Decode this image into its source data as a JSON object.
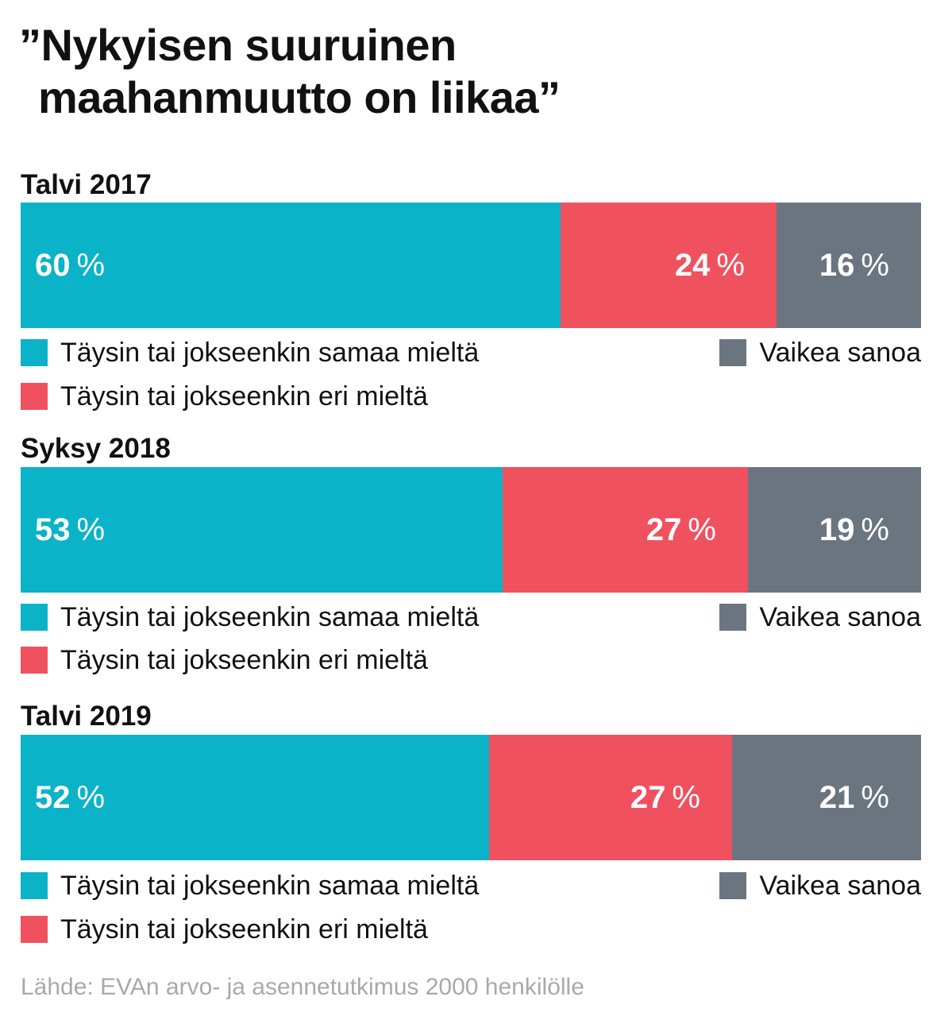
{
  "title_line1": "”Nykyisen suuruinen",
  "title_line2": "maahanmuutto on liikaa”",
  "source": "Lähde: EVAn arvo- ja asennetutkimus 2000 henkilölle",
  "colors": {
    "agree": "#0ab3c8",
    "disagree": "#f0515f",
    "dontknow": "#6b7580"
  },
  "legend": {
    "agree": "Täysin tai jokseenkin samaa mieltä",
    "disagree": "Täysin tai jokseenkin eri mieltä",
    "dontknow": "Vaikea sanoa"
  },
  "chart_data": {
    "type": "bar",
    "orientation": "horizontal-stacked-100",
    "categories": [
      "Talvi 2017",
      "Syksy 2018",
      "Talvi 2019"
    ],
    "series": [
      {
        "name": "Täysin tai jokseenkin samaa mieltä",
        "values": [
          60,
          53,
          52
        ]
      },
      {
        "name": "Täysin tai jokseenkin eri mieltä",
        "values": [
          24,
          27,
          27
        ]
      },
      {
        "name": "Vaikea sanoa",
        "values": [
          16,
          19,
          21
        ]
      }
    ],
    "unit": "%"
  }
}
